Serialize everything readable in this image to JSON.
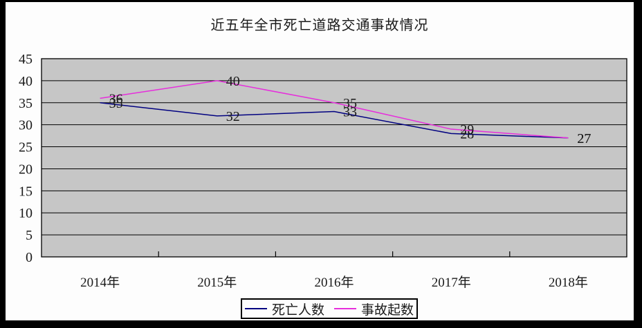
{
  "title": "近五年全市死亡道路交通事故情况",
  "chart_data": {
    "type": "line",
    "title": "近五年全市死亡道路交通事故情况",
    "categories": [
      "2014年",
      "2015年",
      "2016年",
      "2017年",
      "2018年"
    ],
    "series": [
      {
        "name": "死亡人数",
        "color": "#000080",
        "values": [
          35,
          32,
          33,
          28,
          27
        ]
      },
      {
        "name": "事故起数",
        "color": "#E62EDC",
        "values": [
          36,
          40,
          35,
          29,
          27
        ]
      }
    ],
    "xlabel": "",
    "ylabel": "",
    "ylim": [
      0,
      45
    ],
    "yticks": [
      0,
      5,
      10,
      15,
      20,
      25,
      30,
      35,
      40,
      45
    ],
    "grid": "horizontal",
    "data_labels": true,
    "legend_position": "bottom",
    "colors": {
      "plot_background": "#C6C6C6",
      "gridline": "#000000",
      "plot_border": "#000000",
      "text": "#1a1a1a",
      "frame": "#000000",
      "page_background": "#FFFFFF"
    }
  }
}
